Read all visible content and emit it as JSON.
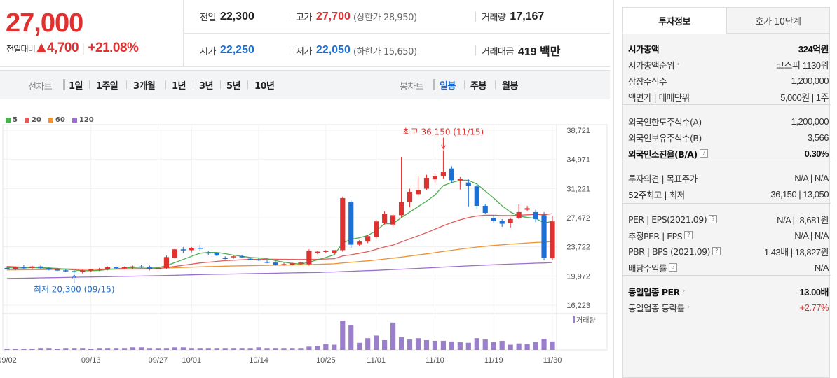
{
  "header": {
    "price": "27,000",
    "change_label": "전일대비",
    "change_amount": "4,700",
    "change_pct": "+21.08%",
    "up_color": "#e03131",
    "down_color": "#1c6fd4",
    "items": {
      "prev_close_label": "전일",
      "prev_close": "22,300",
      "high_label": "고가",
      "high": "27,700",
      "upper_limit": "(상한가 28,950)",
      "volume_label": "거래량",
      "volume": "17,167",
      "open_label": "시가",
      "open": "22,250",
      "low_label": "저가",
      "low": "22,050",
      "lower_limit": "(하한가 15,650)",
      "trade_value_label": "거래대금",
      "trade_value": "419 백만"
    }
  },
  "toolbar": {
    "line_chart_label": "선차트",
    "periods": [
      "1일",
      "1주일",
      "3개월",
      "1년",
      "3년",
      "5년",
      "10년"
    ],
    "candle_chart_label": "봉차트",
    "candles": [
      "일봉",
      "주봉",
      "월봉"
    ],
    "active_candle": "일봉"
  },
  "chart_data": {
    "type": "candlestick",
    "legend": [
      {
        "name": "5",
        "color": "#4caf50"
      },
      {
        "name": "20",
        "color": "#e55b5b"
      },
      {
        "name": "60",
        "color": "#f0922f"
      },
      {
        "name": "120",
        "color": "#9b6fd0"
      }
    ],
    "y_ticks": [
      "38,721",
      "34,971",
      "31,221",
      "27,472",
      "23,722",
      "19,972",
      "16,223"
    ],
    "ylim": [
      16223,
      38721
    ],
    "x_tick_labels": [
      "09/02",
      "09/13",
      "09/27",
      "10/01",
      "10/14",
      "10/25",
      "11/01",
      "11/10",
      "11/19",
      "11/30"
    ],
    "volume_label": "거래량",
    "annotations": {
      "high": "최고 36,150 (11/15)",
      "low": "최저 20,300 (09/15)"
    },
    "candles": [
      {
        "o": 21000,
        "h": 21200,
        "l": 20800,
        "c": 20900
      },
      {
        "o": 20900,
        "h": 21200,
        "l": 20700,
        "c": 21100
      },
      {
        "o": 21100,
        "h": 21400,
        "l": 20900,
        "c": 21000
      },
      {
        "o": 21000,
        "h": 21300,
        "l": 20800,
        "c": 21200
      },
      {
        "o": 21200,
        "h": 21300,
        "l": 20900,
        "c": 21000
      },
      {
        "o": 21000,
        "h": 21100,
        "l": 20700,
        "c": 20800
      },
      {
        "o": 20800,
        "h": 21000,
        "l": 20600,
        "c": 20700
      },
      {
        "o": 20700,
        "h": 20900,
        "l": 20500,
        "c": 20600
      },
      {
        "o": 20600,
        "h": 20800,
        "l": 20300,
        "c": 20500
      },
      {
        "o": 20500,
        "h": 20800,
        "l": 20300,
        "c": 20700
      },
      {
        "o": 20700,
        "h": 20900,
        "l": 20500,
        "c": 20800
      },
      {
        "o": 20800,
        "h": 21000,
        "l": 20600,
        "c": 20900
      },
      {
        "o": 20900,
        "h": 21200,
        "l": 20700,
        "c": 21100
      },
      {
        "o": 21100,
        "h": 21300,
        "l": 20900,
        "c": 21000
      },
      {
        "o": 21000,
        "h": 21200,
        "l": 20800,
        "c": 21100
      },
      {
        "o": 21100,
        "h": 21300,
        "l": 20900,
        "c": 21200
      },
      {
        "o": 21200,
        "h": 21400,
        "l": 21000,
        "c": 21100
      },
      {
        "o": 21100,
        "h": 21300,
        "l": 20700,
        "c": 20900
      },
      {
        "o": 20900,
        "h": 21200,
        "l": 20800,
        "c": 21000
      },
      {
        "o": 21000,
        "h": 22600,
        "l": 20900,
        "c": 22400
      },
      {
        "o": 22300,
        "h": 23600,
        "l": 22200,
        "c": 23400
      },
      {
        "o": 23400,
        "h": 23700,
        "l": 22900,
        "c": 23300
      },
      {
        "o": 23300,
        "h": 23700,
        "l": 23000,
        "c": 23600
      },
      {
        "o": 23600,
        "h": 24000,
        "l": 23200,
        "c": 23500
      },
      {
        "o": 23000,
        "h": 23200,
        "l": 22700,
        "c": 22900
      },
      {
        "o": 22900,
        "h": 23000,
        "l": 22500,
        "c": 22600
      },
      {
        "o": 22300,
        "h": 22500,
        "l": 22100,
        "c": 22200
      },
      {
        "o": 22400,
        "h": 22600,
        "l": 22200,
        "c": 22500
      },
      {
        "o": 22500,
        "h": 22700,
        "l": 22300,
        "c": 22400
      },
      {
        "o": 22200,
        "h": 22400,
        "l": 22000,
        "c": 22100
      },
      {
        "o": 22100,
        "h": 22300,
        "l": 21900,
        "c": 22000
      },
      {
        "o": 21800,
        "h": 22000,
        "l": 21600,
        "c": 21700
      },
      {
        "o": 21700,
        "h": 21900,
        "l": 21300,
        "c": 21400
      },
      {
        "o": 21400,
        "h": 21700,
        "l": 21300,
        "c": 21500
      },
      {
        "o": 21400,
        "h": 21700,
        "l": 21300,
        "c": 21600
      },
      {
        "o": 21600,
        "h": 21800,
        "l": 21400,
        "c": 21700
      },
      {
        "o": 21500,
        "h": 23400,
        "l": 21300,
        "c": 23200
      },
      {
        "o": 23000,
        "h": 23200,
        "l": 22800,
        "c": 23100
      },
      {
        "o": 23100,
        "h": 23300,
        "l": 22900,
        "c": 23200
      },
      {
        "o": 22900,
        "h": 23300,
        "l": 22700,
        "c": 23300
      },
      {
        "o": 23300,
        "h": 30200,
        "l": 23100,
        "c": 30000
      },
      {
        "o": 29500,
        "h": 29700,
        "l": 23600,
        "c": 24000
      },
      {
        "o": 24000,
        "h": 24600,
        "l": 23800,
        "c": 24400
      },
      {
        "o": 24400,
        "h": 25300,
        "l": 24200,
        "c": 25100
      },
      {
        "o": 25000,
        "h": 27200,
        "l": 24800,
        "c": 27000
      },
      {
        "o": 26800,
        "h": 28300,
        "l": 26600,
        "c": 28000
      },
      {
        "o": 26600,
        "h": 28000,
        "l": 26400,
        "c": 27800
      },
      {
        "o": 27800,
        "h": 35300,
        "l": 27500,
        "c": 29500
      },
      {
        "o": 29500,
        "h": 31200,
        "l": 28800,
        "c": 30800
      },
      {
        "o": 30500,
        "h": 32800,
        "l": 30300,
        "c": 31000
      },
      {
        "o": 31200,
        "h": 33000,
        "l": 31000,
        "c": 32600
      },
      {
        "o": 32400,
        "h": 33200,
        "l": 32000,
        "c": 32800
      },
      {
        "o": 32800,
        "h": 36150,
        "l": 32500,
        "c": 33400
      },
      {
        "o": 33800,
        "h": 34100,
        "l": 32000,
        "c": 32300
      },
      {
        "o": 32300,
        "h": 32700,
        "l": 31100,
        "c": 32500
      },
      {
        "o": 32000,
        "h": 32400,
        "l": 28900,
        "c": 31600
      },
      {
        "o": 31500,
        "h": 31700,
        "l": 28600,
        "c": 29000
      },
      {
        "o": 29000,
        "h": 29200,
        "l": 28000,
        "c": 28100
      },
      {
        "o": 27400,
        "h": 27800,
        "l": 26800,
        "c": 27100
      },
      {
        "o": 27100,
        "h": 27300,
        "l": 26300,
        "c": 26700
      },
      {
        "o": 26800,
        "h": 27500,
        "l": 26200,
        "c": 27300
      },
      {
        "o": 27400,
        "h": 29200,
        "l": 27300,
        "c": 28200
      },
      {
        "o": 28500,
        "h": 29000,
        "l": 28300,
        "c": 28700
      },
      {
        "o": 28200,
        "h": 28500,
        "l": 26900,
        "c": 27300
      },
      {
        "o": 27800,
        "h": 28200,
        "l": 22000,
        "c": 22300
      },
      {
        "o": 22250,
        "h": 27700,
        "l": 22050,
        "c": 27000
      }
    ],
    "ma5": [
      21050,
      21000,
      21000,
      21050,
      21050,
      21000,
      20950,
      20850,
      20750,
      20650,
      20650,
      20700,
      20800,
      20900,
      21000,
      21050,
      21100,
      21100,
      21050,
      21300,
      21700,
      22100,
      22500,
      22900,
      23000,
      23000,
      22850,
      22650,
      22500,
      22350,
      22300,
      22200,
      21950,
      21750,
      21600,
      21500,
      21750,
      22050,
      22350,
      22700,
      24200,
      24700,
      24900,
      25200,
      25800,
      26700,
      26700,
      27500,
      28200,
      28900,
      29600,
      30400,
      31600,
      32000,
      32300,
      32300,
      31800,
      30900,
      30000,
      29000,
      28200,
      27700,
      27500,
      27400,
      26800,
      27000
    ],
    "ma20": [
      21200,
      21150,
      21100,
      21050,
      21000,
      20950,
      20900,
      20880,
      20860,
      20840,
      20830,
      20830,
      20840,
      20850,
      20870,
      20890,
      20910,
      20930,
      20950,
      21050,
      21200,
      21350,
      21500,
      21650,
      21750,
      21850,
      21950,
      22000,
      22050,
      22100,
      22120,
      22130,
      22130,
      22120,
      22100,
      22090,
      22100,
      22120,
      22150,
      22200,
      22550,
      22700,
      22900,
      23100,
      23400,
      23700,
      23950,
      24350,
      24750,
      25150,
      25550,
      26000,
      26450,
      26850,
      27200,
      27500,
      27700,
      27800,
      27800,
      27750,
      27750,
      27800,
      27850,
      27900,
      27850,
      28000
    ],
    "ma60": [
      20750,
      20760,
      20770,
      20780,
      20790,
      20800,
      20810,
      20820,
      20830,
      20840,
      20850,
      20860,
      20870,
      20880,
      20890,
      20900,
      20920,
      20940,
      20960,
      20990,
      21030,
      21070,
      21110,
      21150,
      21180,
      21210,
      21240,
      21260,
      21280,
      21300,
      21320,
      21340,
      21360,
      21380,
      21400,
      21420,
      21450,
      21480,
      21510,
      21540,
      21650,
      21740,
      21830,
      21920,
      22030,
      22150,
      22270,
      22400,
      22540,
      22680,
      22820,
      22970,
      23130,
      23280,
      23420,
      23560,
      23690,
      23800,
      23900,
      23980,
      24060,
      24140,
      24220,
      24290,
      24320,
      24400
    ],
    "ma120": [
      19650,
      19670,
      19690,
      19710,
      19730,
      19750,
      19770,
      19790,
      19810,
      19830,
      19850,
      19870,
      19890,
      19910,
      19930,
      19950,
      19970,
      19990,
      20010,
      20030,
      20060,
      20090,
      20120,
      20150,
      20170,
      20190,
      20210,
      20230,
      20250,
      20270,
      20290,
      20310,
      20330,
      20350,
      20370,
      20390,
      20410,
      20430,
      20460,
      20490,
      20540,
      20580,
      20620,
      20660,
      20700,
      20750,
      20800,
      20850,
      20900,
      20950,
      21000,
      21060,
      21120,
      21170,
      21220,
      21270,
      21320,
      21370,
      21420,
      21460,
      21500,
      21540,
      21580,
      21620,
      21650,
      21700
    ],
    "volume": [
      2,
      2,
      2,
      2,
      3,
      3,
      2,
      3,
      3,
      3,
      2,
      3,
      3,
      3,
      3,
      4,
      4,
      3,
      3,
      3,
      4,
      4,
      3,
      3,
      3,
      3,
      3,
      3,
      3,
      3,
      4,
      3,
      3,
      3,
      3,
      3,
      5,
      6,
      9,
      8,
      45,
      38,
      11,
      18,
      22,
      15,
      42,
      20,
      16,
      18,
      15,
      14,
      14,
      13,
      12,
      11,
      18,
      16,
      12,
      14,
      8,
      10,
      9,
      12,
      17,
      13
    ]
  },
  "panel": {
    "tabs": [
      "투자정보",
      "호가 10단계"
    ],
    "active_tab": "투자정보",
    "groups": [
      [
        {
          "k": "시가총액",
          "v": "324억원",
          "bold": true
        },
        {
          "k": "시가총액순위",
          "v": "코스피 1130위",
          "arrow": true
        },
        {
          "k": "상장주식수",
          "v": "1,200,000"
        },
        {
          "k": "액면가 | 매매단위",
          "v": "5,000원 | 1주"
        }
      ],
      [
        {
          "k": "외국인한도주식수(A)",
          "v": "1,200,000"
        },
        {
          "k": "외국인보유주식수(B)",
          "v": "3,566"
        },
        {
          "k": "외국인소진율(B/A)",
          "v": "0.30%",
          "bold": true,
          "help": true
        }
      ],
      [
        {
          "k": "투자의견 | 목표주가",
          "v": "N/A | N/A"
        },
        {
          "k": "52주최고 | 최저",
          "v": "36,150 | 13,050"
        }
      ],
      [
        {
          "k": "PER | EPS(2021.09)",
          "v": "N/A | -8,681원",
          "help": true
        },
        {
          "k": "추정PER | EPS",
          "v": "N/A | N/A",
          "help": true
        },
        {
          "k": "PBR | BPS (2021.09)",
          "v": "1.43배 | 18,827원",
          "help": true
        },
        {
          "k": "배당수익률",
          "v": "N/A",
          "help": true
        }
      ],
      [
        {
          "k": "동일업종 PER",
          "v": "13.00배",
          "bold": true,
          "arrow": true
        },
        {
          "k": "동일업종 등락률",
          "v": "+2.77%",
          "arrow": true,
          "red": true
        }
      ]
    ]
  }
}
